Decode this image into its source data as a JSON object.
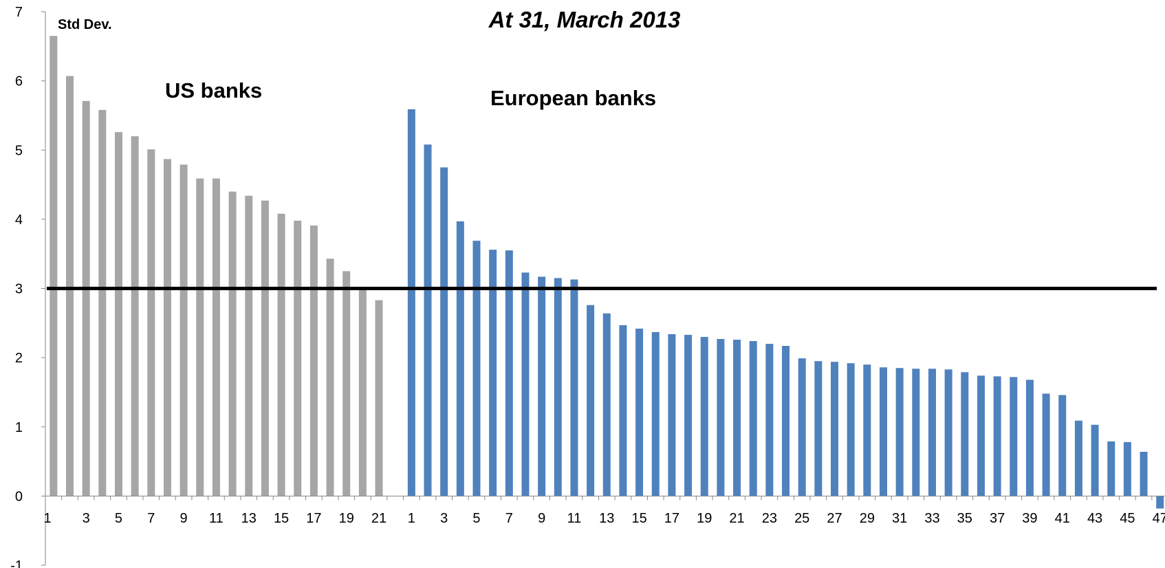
{
  "chart_data": {
    "type": "bar",
    "title": "At 31, March 2013",
    "ylabel": "Std Dev.",
    "xlabel": "",
    "ylim": [
      -1,
      7
    ],
    "yticks": [
      "-1",
      "0",
      "1",
      "2",
      "3",
      "4",
      "5",
      "6",
      "7"
    ],
    "grid": false,
    "legend": "none",
    "annotations": [
      "US banks",
      "European banks"
    ],
    "reference_line": {
      "y": 3,
      "color": "#000000"
    },
    "series": [
      {
        "group": "US banks",
        "color": "#a6a6a6",
        "x": [
          1,
          2,
          3,
          4,
          5,
          6,
          7,
          8,
          9,
          10,
          11,
          12,
          13,
          14,
          15,
          16,
          17,
          18,
          19,
          20,
          21,
          22
        ],
        "values": [
          6.65,
          6.07,
          5.71,
          5.58,
          5.26,
          5.2,
          5.01,
          4.87,
          4.79,
          4.59,
          4.59,
          4.4,
          4.34,
          4.27,
          4.08,
          3.98,
          3.91,
          3.43,
          3.25,
          2.99,
          2.83,
          null
        ],
        "tick_labels": [
          "1",
          "3",
          "5",
          "7",
          "9",
          "11",
          "13",
          "15",
          "17",
          "19",
          "21"
        ]
      },
      {
        "group": "European banks",
        "color": "#4f81bd",
        "x": [
          1,
          2,
          3,
          4,
          5,
          6,
          7,
          8,
          9,
          10,
          11,
          12,
          13,
          14,
          15,
          16,
          17,
          18,
          19,
          20,
          21,
          22,
          23,
          24,
          25,
          26,
          27,
          28,
          29,
          30,
          31,
          32,
          33,
          34,
          35,
          36,
          37,
          38,
          39,
          40,
          41,
          42,
          43,
          44,
          45,
          46,
          47
        ],
        "values": [
          5.59,
          5.08,
          4.75,
          3.97,
          3.69,
          3.56,
          3.55,
          3.23,
          3.17,
          3.15,
          3.13,
          2.76,
          2.64,
          2.47,
          2.42,
          2.37,
          2.34,
          2.33,
          2.3,
          2.27,
          2.26,
          2.24,
          2.2,
          2.17,
          1.99,
          1.95,
          1.94,
          1.92,
          1.9,
          1.86,
          1.85,
          1.84,
          1.84,
          1.83,
          1.79,
          1.74,
          1.73,
          1.72,
          1.68,
          1.48,
          1.46,
          1.09,
          1.03,
          0.79,
          0.78,
          0.64,
          -0.18
        ],
        "tick_labels": [
          "1",
          "3",
          "5",
          "7",
          "9",
          "11",
          "13",
          "15",
          "17",
          "19",
          "21",
          "23",
          "25",
          "27",
          "29",
          "31",
          "33",
          "35",
          "37",
          "39",
          "41",
          "43",
          "45",
          "47"
        ]
      }
    ]
  }
}
